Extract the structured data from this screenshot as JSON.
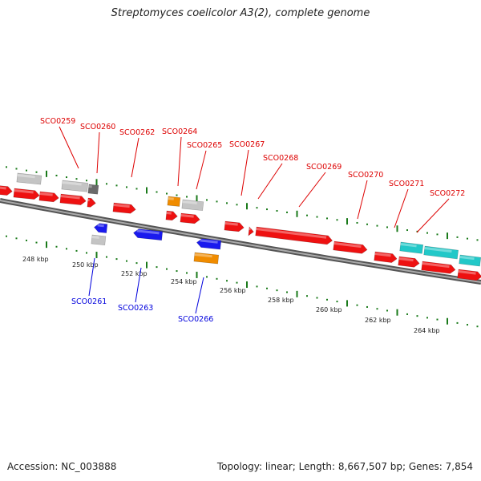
{
  "title": "Streptomyces coelicolor A3(2), complete genome",
  "footer": {
    "accession": "Accession: NC_003888",
    "topology": "Topology: linear; Length: 8,667,507 bp; Genes: 7,854"
  },
  "colors": {
    "forward_gene": "#ee1111",
    "reverse_gene": "#1a1aee",
    "rna_gene": "#22c8c8",
    "orange_feature": "#f08c00",
    "gray_feature": "#c4c4c4",
    "dark_gray_feature": "#6a6a6a",
    "backbone": "#888888",
    "ticks": "#1a7a1a",
    "forward_label": "#dd0000",
    "reverse_label": "#0000dd"
  },
  "scale_labels": [
    "248 kbp",
    "250 kbp",
    "252 kbp",
    "254 kbp",
    "256 kbp",
    "258 kbp",
    "260 kbp",
    "262 kbp",
    "264 kbp"
  ],
  "gene_labels_forward": [
    "SCO0259",
    "SCO0260",
    "SCO0262",
    "SCO0264",
    "SCO0265",
    "SCO0267",
    "SCO0268",
    "SCO0269",
    "SCO0270",
    "SCO0271",
    "SCO0272"
  ],
  "gene_labels_reverse": [
    "SCO0261",
    "SCO0263",
    "SCO0266"
  ]
}
